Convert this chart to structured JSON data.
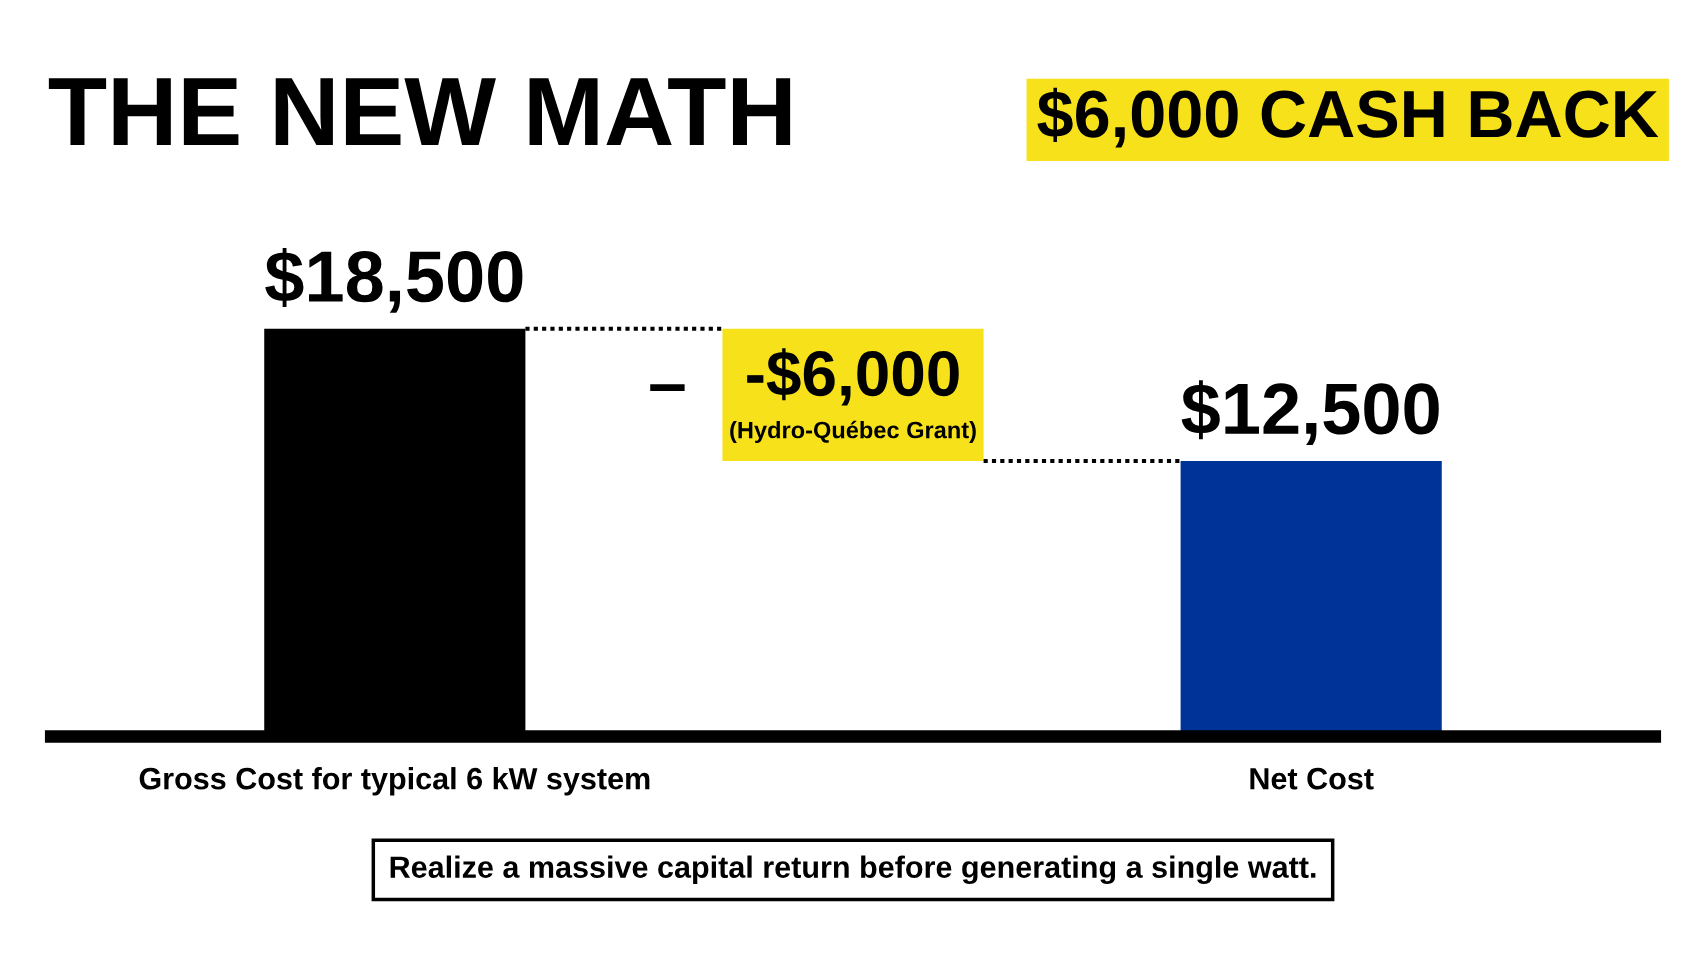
{
  "chart_data": {
    "type": "bar",
    "title": "THE NEW MATH",
    "subtitle": "$6,000 CASH BACK",
    "categories": [
      "Gross Cost for typical 6 kW system",
      null,
      "Net Cost"
    ],
    "values": [
      18500,
      null,
      12500
    ],
    "colors": [
      "#000000",
      null,
      "#003398"
    ],
    "value_labels": [
      "$18,500",
      null,
      "$12,500"
    ],
    "annotations": [
      "–",
      "-$6,000",
      "(Hydro-Québec Grant)",
      "Realize a massive capital return before generating a single watt."
    ],
    "grid": false,
    "legend": false
  }
}
